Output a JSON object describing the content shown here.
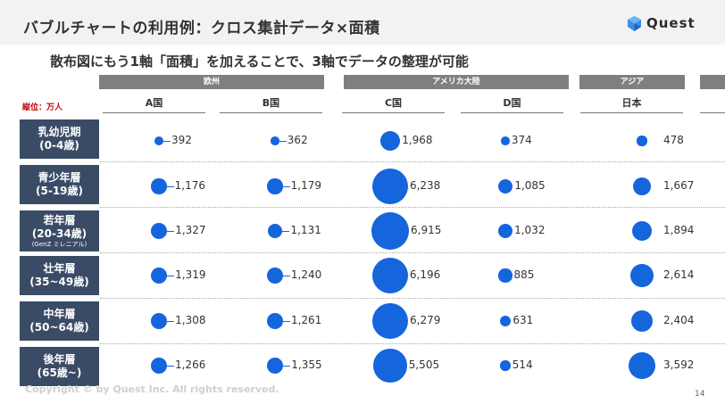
{
  "header": {
    "title": "バブルチャートの利用例：クロス集計データ×面積",
    "logo_text": "Quest",
    "accent_color": "#3a8ee6"
  },
  "subtitle": "散布図にもう1軸「面積」を加えることで、3軸でデータの整理が可能",
  "unit_label": "縦位：万人",
  "regions": [
    "欧州",
    "アメリカ大陸",
    "アジア"
  ],
  "countries": [
    "A国",
    "B国",
    "C国",
    "D国",
    "日本"
  ],
  "rows": [
    {
      "label": "乳幼児期",
      "range": "(0-4歳)",
      "note": ""
    },
    {
      "label": "青少年層",
      "range": "(5-19歳)",
      "note": ""
    },
    {
      "label": "若年層",
      "range": "(20-34歳)",
      "note": "(GenZ ミレニアル)"
    },
    {
      "label": "壮年層",
      "range": "(35~49歳)",
      "note": ""
    },
    {
      "label": "中年層",
      "range": "(50~64歳)",
      "note": ""
    },
    {
      "label": "後年層",
      "range": "(65歳~)",
      "note": ""
    }
  ],
  "values": [
    [
      "392",
      "362",
      "1,968",
      "374",
      "478"
    ],
    [
      "1,176",
      "1,179",
      "6,238",
      "1,085",
      "1,667"
    ],
    [
      "1,327",
      "1,131",
      "6,915",
      "1,032",
      "1,894"
    ],
    [
      "1,319",
      "1,240",
      "6,196",
      "885",
      "2,614"
    ],
    [
      "1,308",
      "1,261",
      "6,279",
      "631",
      "2,404"
    ],
    [
      "1,266",
      "1,355",
      "5,505",
      "514",
      "3,592"
    ]
  ],
  "bubble_color": "#1565dc",
  "footer": {
    "copyright": "Copyright © by Quest Inc. All rights reserved.",
    "page": "14"
  }
}
